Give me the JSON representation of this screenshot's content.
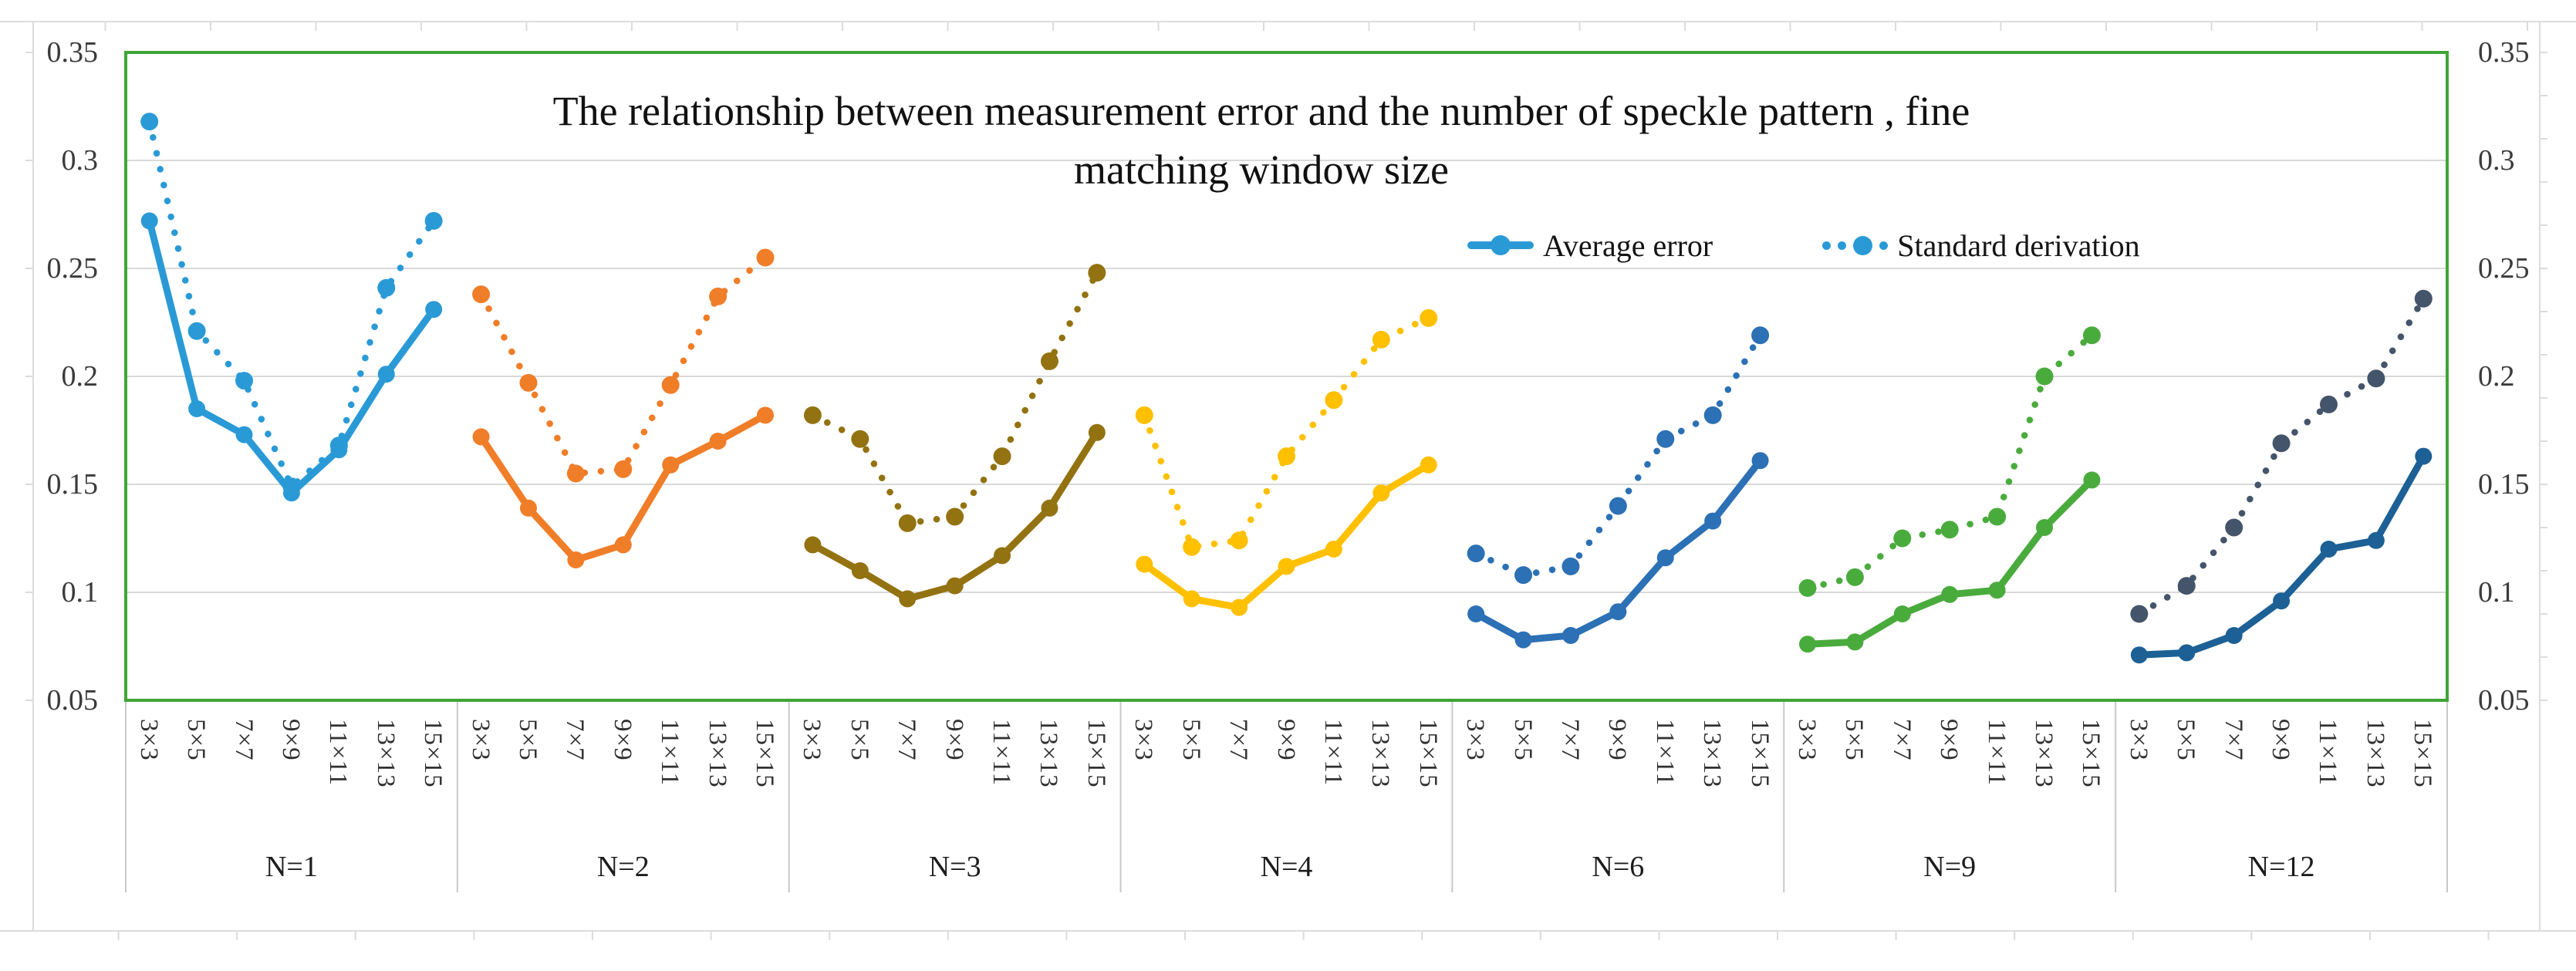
{
  "chart_data": {
    "type": "line",
    "title_line1": "The relationship between measurement error and the number of speckle pattern , fine",
    "title_line2": "matching window size",
    "legend": {
      "average_label": "Average error",
      "standard_label": "Standard derivation",
      "marker_color": "#2A9AD6"
    },
    "y_axis": {
      "min": 0.05,
      "max": 0.35,
      "tick_labels": [
        "0.35",
        "0.3",
        "0.25",
        "0.2",
        "0.15",
        "0.1",
        "0.05"
      ],
      "tick_values": [
        0.35,
        0.3,
        0.25,
        0.2,
        0.15,
        0.1,
        0.05
      ],
      "gridline_values": [
        0.3,
        0.25,
        0.2,
        0.15,
        0.1
      ],
      "sides": "both"
    },
    "categories": [
      "3×3",
      "5×5",
      "7×7",
      "9×9",
      "11×11",
      "13×13",
      "15×15"
    ],
    "series_styles": {
      "average": "solid",
      "standard": "dotted"
    },
    "groups": [
      {
        "name": "N=1",
        "color": "#2A9AD6",
        "average_error": [
          0.272,
          0.185,
          0.173,
          0.146,
          0.166,
          0.201,
          0.231
        ],
        "standard_derivation": [
          0.318,
          0.221,
          0.198,
          0.149,
          0.168,
          0.241,
          0.272
        ]
      },
      {
        "name": "N=2",
        "color": "#F07D28",
        "average_error": [
          0.172,
          0.139,
          0.115,
          0.122,
          0.159,
          0.17,
          0.182
        ],
        "standard_derivation": [
          0.238,
          0.197,
          0.155,
          0.157,
          0.196,
          0.237,
          0.255
        ]
      },
      {
        "name": "N=3",
        "color": "#937211",
        "average_error": [
          0.122,
          0.11,
          0.097,
          0.103,
          0.117,
          0.139,
          0.174
        ],
        "standard_derivation": [
          0.182,
          0.171,
          0.132,
          0.135,
          0.163,
          0.207,
          0.248
        ]
      },
      {
        "name": "N=4",
        "color": "#FFC000",
        "average_error": [
          0.113,
          0.097,
          0.093,
          0.112,
          0.12,
          0.146,
          0.159
        ],
        "standard_derivation": [
          0.182,
          0.121,
          0.124,
          0.163,
          0.189,
          0.217,
          0.227
        ]
      },
      {
        "name": "N=6",
        "color": "#2C70B5",
        "average_error": [
          0.09,
          0.078,
          0.08,
          0.091,
          0.116,
          0.133,
          0.161
        ],
        "standard_derivation": [
          0.118,
          0.108,
          0.112,
          0.14,
          0.171,
          0.182,
          0.219
        ]
      },
      {
        "name": "N=9",
        "color": "#4AAB3D",
        "average_error": [
          0.076,
          0.077,
          0.09,
          0.099,
          0.101,
          0.13,
          0.152
        ],
        "standard_derivation": [
          0.102,
          0.107,
          0.125,
          0.129,
          0.135,
          0.2,
          0.219
        ]
      },
      {
        "name": "N=12",
        "color": "#1C6095",
        "dotted_color": "#44546A",
        "average_error": [
          0.071,
          0.072,
          0.08,
          0.096,
          0.12,
          0.124,
          0.163
        ],
        "standard_derivation": [
          0.09,
          0.103,
          0.13,
          0.169,
          0.187,
          0.199,
          0.236
        ]
      }
    ],
    "frame_color": "#3EA636",
    "gridline_color": "#D9D9D9",
    "divider_color": "#C8C8C8",
    "outer_line_color": "#DCDCDC"
  }
}
